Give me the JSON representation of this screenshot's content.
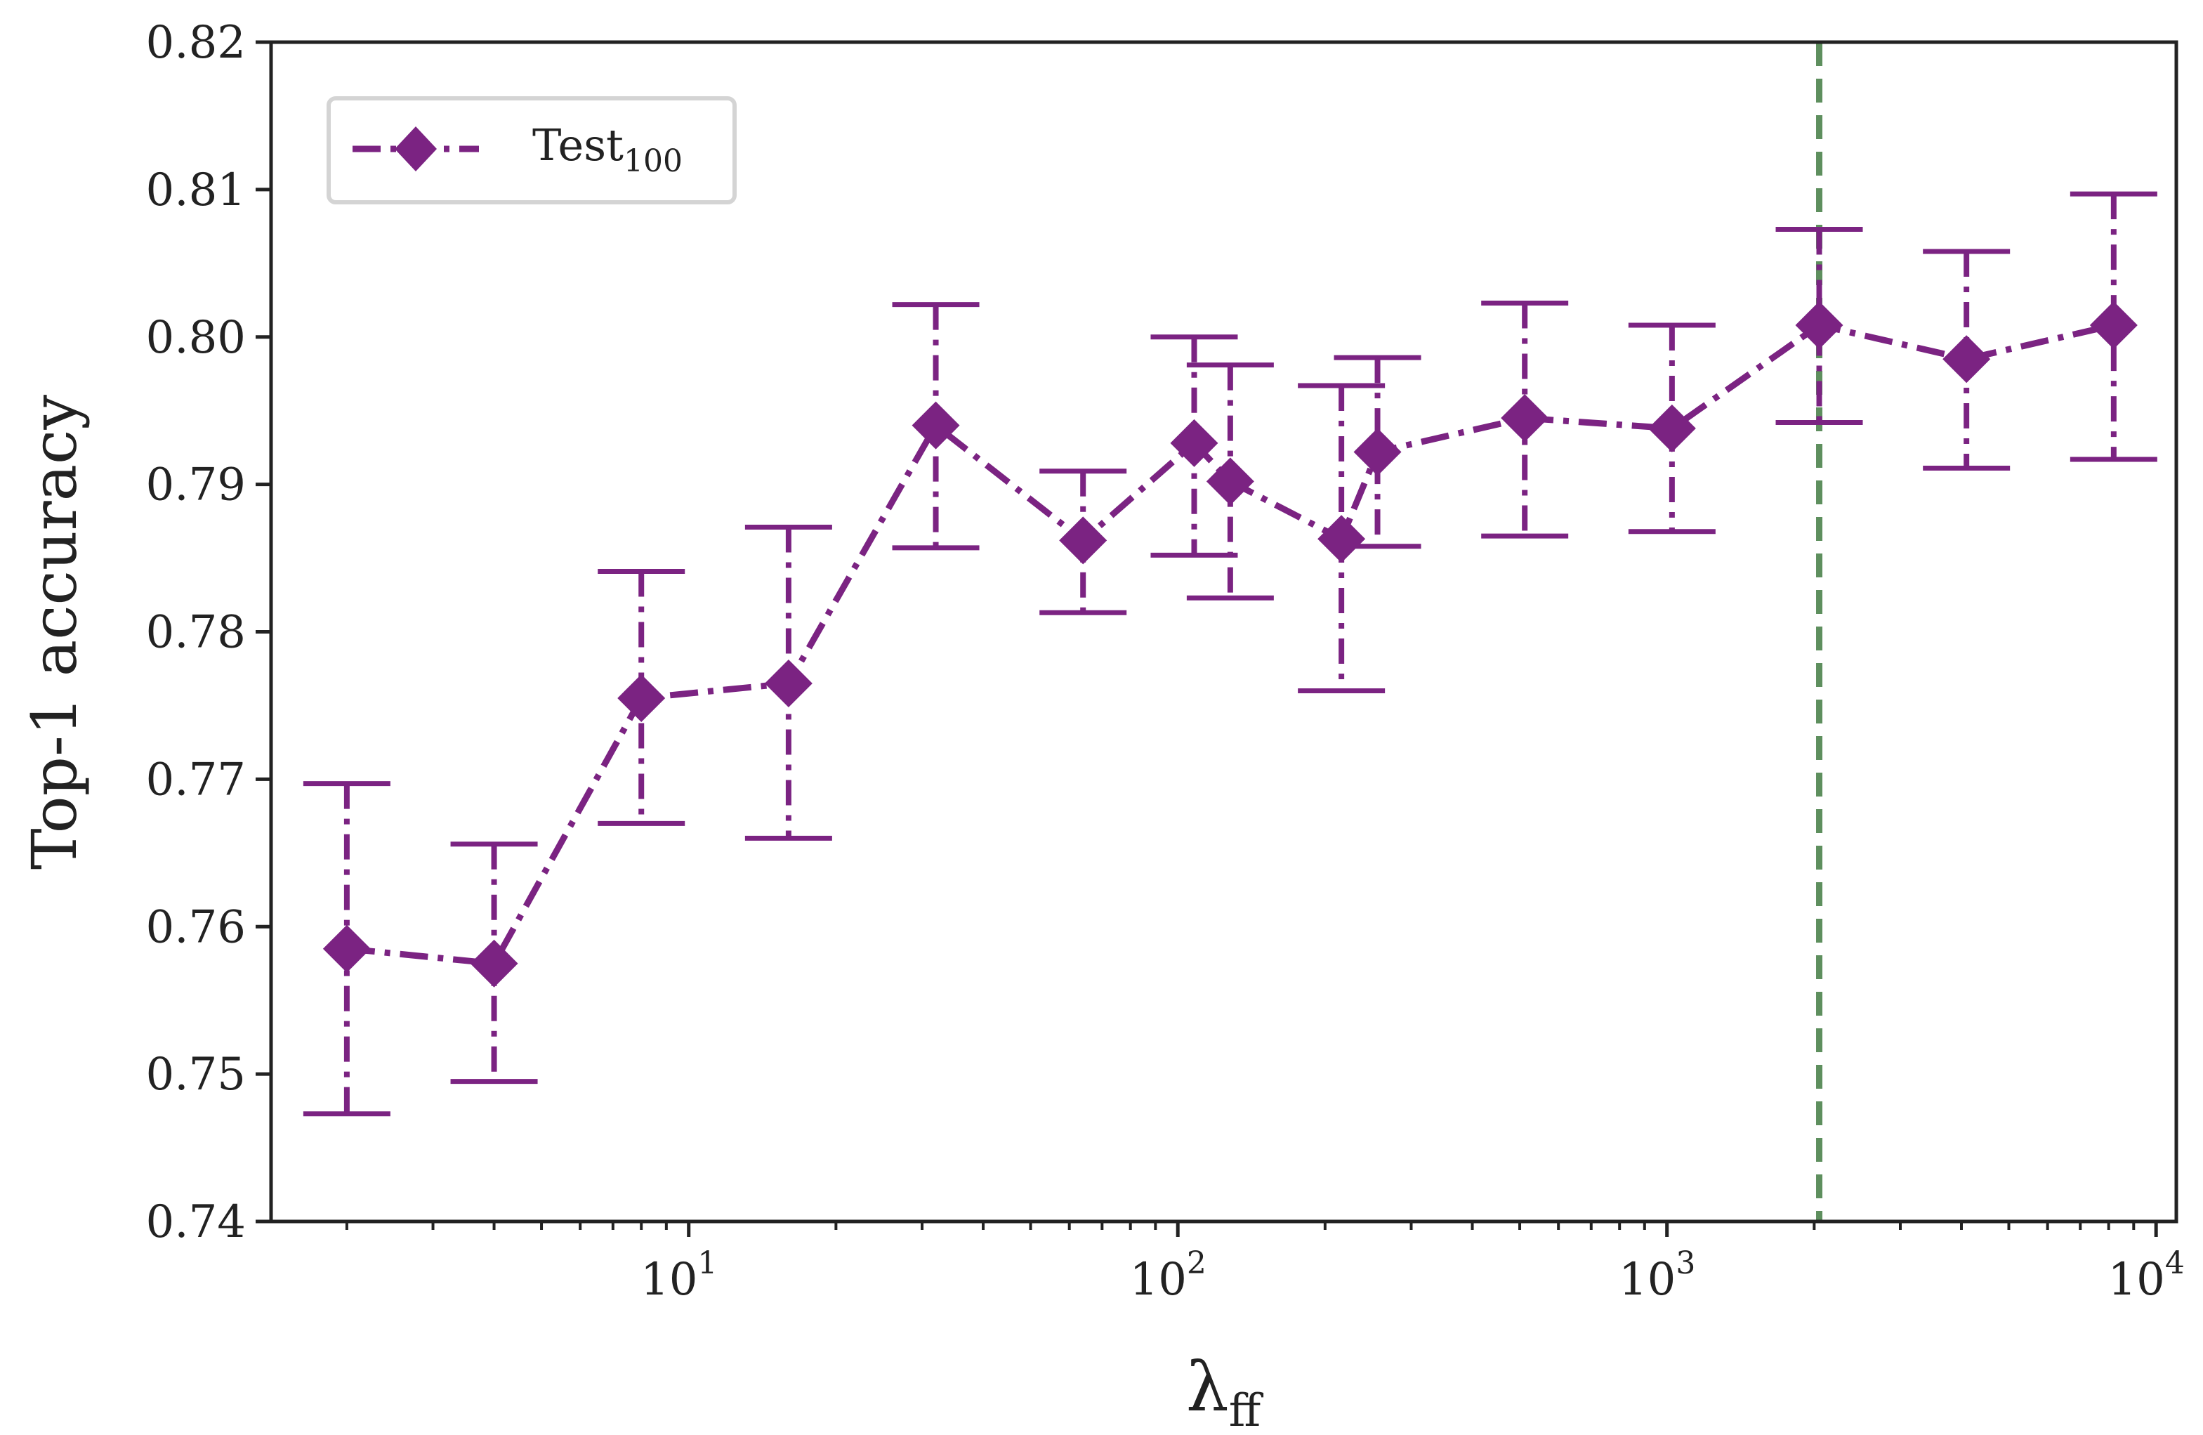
{
  "chart_data": {
    "type": "line",
    "xscale": "log",
    "xlim": [
      1.4,
      11000
    ],
    "ylim": [
      0.74,
      0.82
    ],
    "yticks": [
      "0.74",
      "0.75",
      "0.76",
      "0.77",
      "0.78",
      "0.79",
      "0.80",
      "0.81",
      "0.82"
    ],
    "xticks": [
      {
        "base": "10",
        "exp": "1",
        "value": 10
      },
      {
        "base": "10",
        "exp": "2",
        "value": 100
      },
      {
        "base": "10",
        "exp": "3",
        "value": 1000
      },
      {
        "base": "10",
        "exp": "4",
        "value": 10000
      }
    ],
    "xlabel": {
      "symbol": "λ",
      "sub": "ff"
    },
    "ylabel": "Top-1 accuracy",
    "grid": false,
    "legend_position": "top-left",
    "series": [
      {
        "name": "Test",
        "name_sub": "100",
        "color": "#7B2382",
        "marker": "diamond",
        "linestyle": "dashdot",
        "points": [
          {
            "x": 2,
            "y": 0.7585,
            "ylo": 0.7473,
            "yhi": 0.7697
          },
          {
            "x": 4,
            "y": 0.7575,
            "ylo": 0.7495,
            "yhi": 0.7656
          },
          {
            "x": 8,
            "y": 0.7755,
            "ylo": 0.767,
            "yhi": 0.7841
          },
          {
            "x": 16,
            "y": 0.7765,
            "ylo": 0.766,
            "yhi": 0.7871
          },
          {
            "x": 32,
            "y": 0.794,
            "ylo": 0.7857,
            "yhi": 0.8022
          },
          {
            "x": 64,
            "y": 0.7862,
            "ylo": 0.7813,
            "yhi": 0.7909
          },
          {
            "x": 108,
            "y": 0.7928,
            "ylo": 0.7852,
            "yhi": 0.8
          },
          {
            "x": 128,
            "y": 0.7902,
            "ylo": 0.7823,
            "yhi": 0.7981
          },
          {
            "x": 216,
            "y": 0.7863,
            "ylo": 0.776,
            "yhi": 0.7967
          },
          {
            "x": 256,
            "y": 0.7922,
            "ylo": 0.7858,
            "yhi": 0.7986
          },
          {
            "x": 512,
            "y": 0.7945,
            "ylo": 0.7865,
            "yhi": 0.8023
          },
          {
            "x": 1024,
            "y": 0.7938,
            "ylo": 0.7868,
            "yhi": 0.8008
          },
          {
            "x": 2048,
            "y": 0.8008,
            "ylo": 0.7942,
            "yhi": 0.8073
          },
          {
            "x": 4096,
            "y": 0.7985,
            "ylo": 0.7911,
            "yhi": 0.8058
          },
          {
            "x": 8192,
            "y": 0.8008,
            "ylo": 0.7917,
            "yhi": 0.8097
          }
        ]
      }
    ],
    "reference_line": {
      "orientation": "vertical",
      "x": 2048,
      "color": "#5E8F5E",
      "linestyle": "dashed"
    }
  }
}
